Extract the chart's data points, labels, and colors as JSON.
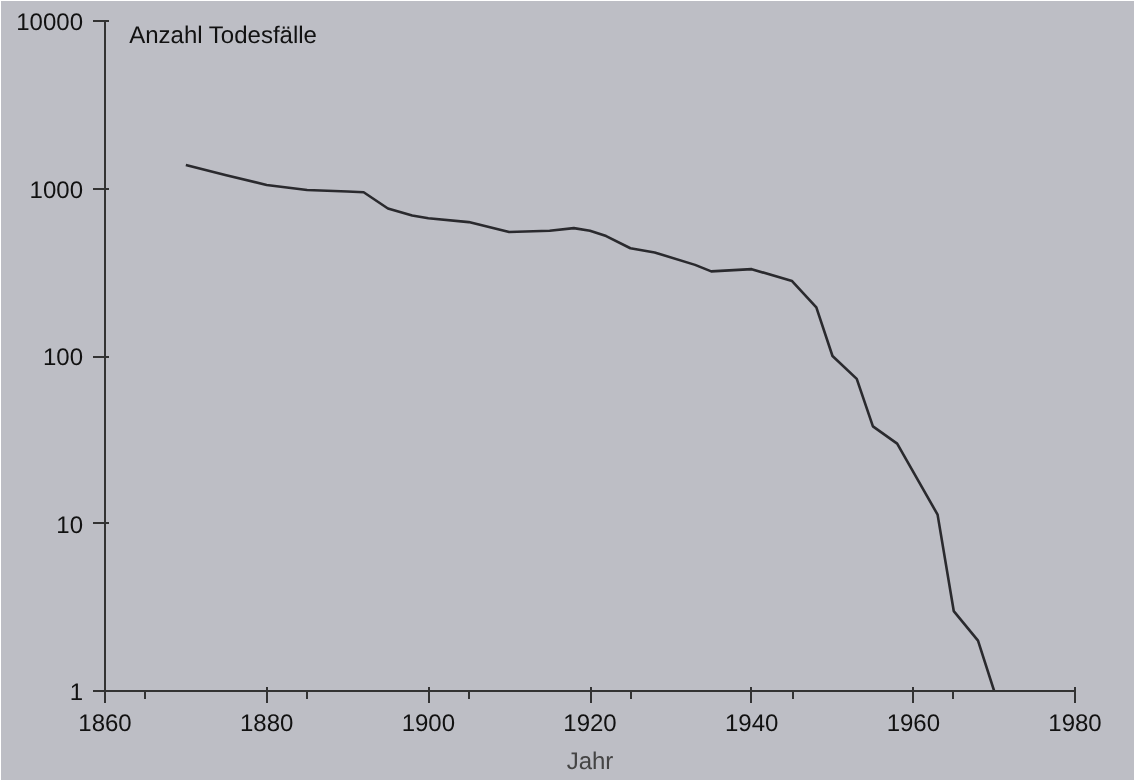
{
  "chart_data": {
    "type": "line",
    "ylabel": "Anzahl Todesfälle",
    "xlabel": "Jahr",
    "x": [
      1870,
      1875,
      1880,
      1885,
      1890,
      1892,
      1895,
      1898,
      1900,
      1905,
      1910,
      1915,
      1918,
      1920,
      1922,
      1925,
      1928,
      1933,
      1935,
      1940,
      1945,
      1948,
      1950,
      1953,
      1955,
      1958,
      1963,
      1965,
      1968,
      1970
    ],
    "series": [
      {
        "color": "#2a2a2e",
        "values": [
          1380,
          1200,
          1050,
          980,
          960,
          950,
          760,
          690,
          665,
          630,
          550,
          560,
          580,
          560,
          520,
          440,
          415,
          350,
          320,
          330,
          280,
          195,
          100,
          73,
          38,
          30,
          11.3,
          3,
          2,
          1
        ]
      }
    ],
    "log": "y",
    "xlim": [
      1860,
      1980
    ],
    "ylim": [
      1,
      10000
    ],
    "xticks": [
      1860,
      1880,
      1900,
      1920,
      1940,
      1960,
      1980
    ],
    "yticks": [
      1,
      10,
      100,
      1000,
      10000
    ],
    "grid": false
  }
}
